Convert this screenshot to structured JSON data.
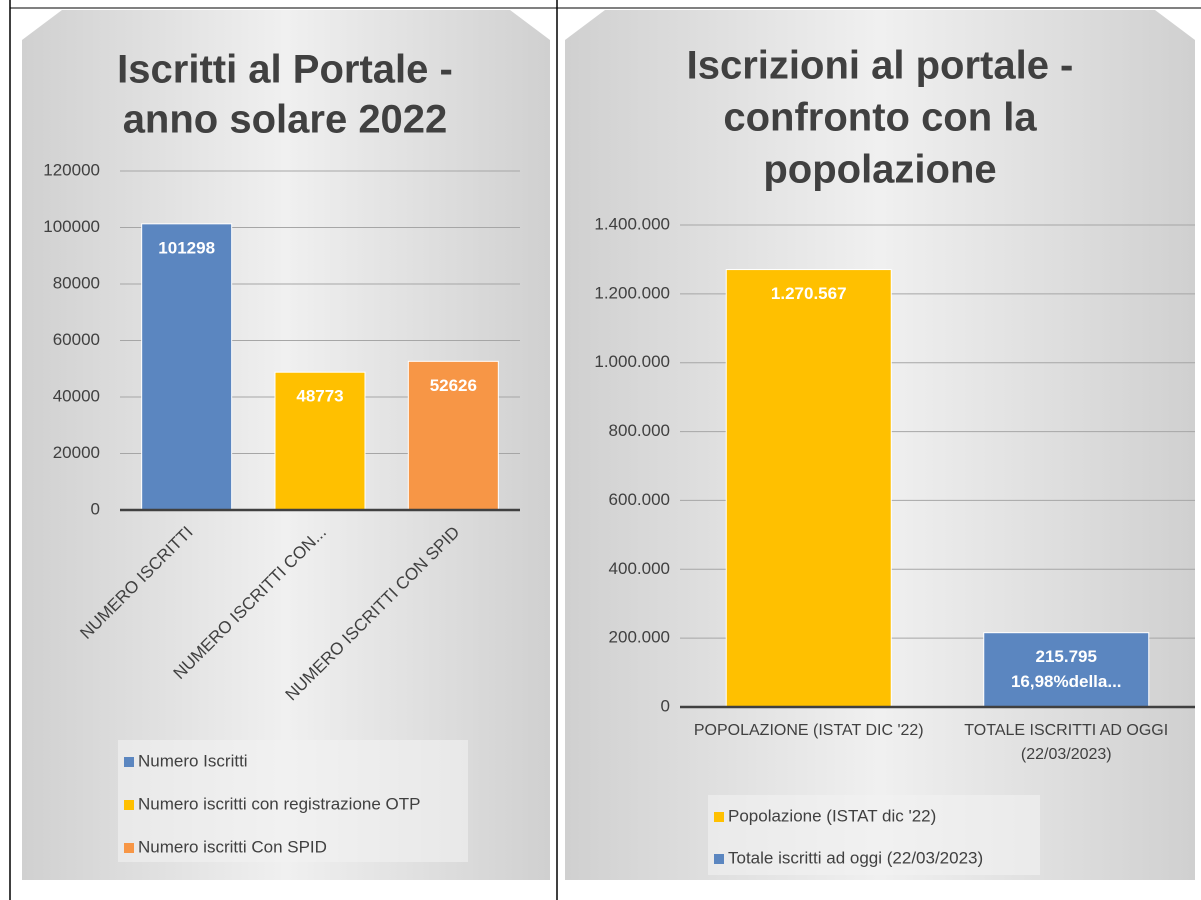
{
  "chart_data": [
    {
      "type": "bar",
      "title": [
        "Iscritti al Portale -",
        "anno solare 2022"
      ],
      "categories": [
        "NUMERO ISCRITTI",
        "NUMERO ISCRITTI CON...",
        "NUMERO ISCRITTI CON SPID"
      ],
      "series": [
        {
          "name": "Numero Iscritti",
          "color": "#5b86c0",
          "values": [
            101298,
            null,
            null
          ]
        },
        {
          "name": "Numero iscritti con registrazione OTP",
          "color": "#ffc000",
          "values": [
            null,
            48773,
            null
          ]
        },
        {
          "name": "Numero iscritti Con SPID",
          "color": "#f79646",
          "values": [
            null,
            null,
            52626
          ]
        }
      ],
      "ylim": [
        0,
        120000
      ],
      "yticks": [
        0,
        20000,
        40000,
        60000,
        80000,
        100000,
        120000
      ],
      "grid": true,
      "legend": "bottom"
    },
    {
      "type": "bar",
      "title": [
        "Iscrizioni al portale -",
        "confronto con la",
        "popolazione"
      ],
      "categories": [
        "POPOLAZIONE (ISTAT DIC '22)",
        "TOTALE ISCRITTI AD OGGI (22/03/2023)"
      ],
      "series": [
        {
          "name": "Popolazione (ISTAT dic '22)",
          "color": "#ffc000",
          "values": [
            1270567,
            null
          ],
          "value_labels": [
            "1.270.567",
            null
          ]
        },
        {
          "name": "Totale iscritti ad oggi (22/03/2023)",
          "color": "#5b86c0",
          "values": [
            null,
            215795
          ],
          "value_labels": [
            null,
            "215.795"
          ]
        }
      ],
      "annotations": [
        "16,98%della..."
      ],
      "ylim": [
        0,
        1400000
      ],
      "yticks": [
        0,
        {
          "value": 200000,
          "label": "200.000"
        },
        {
          "value": 400000,
          "label": "400.000"
        },
        {
          "value": 600000,
          "label": "600.000"
        },
        {
          "value": 800000,
          "label": "800.000"
        },
        {
          "value": 1000000,
          "label": "1.000.000"
        },
        {
          "value": 1200000,
          "label": "1.200.000"
        },
        {
          "value": 1400000,
          "label": "1.400.000"
        }
      ],
      "grid": true,
      "legend": "bottom"
    }
  ]
}
